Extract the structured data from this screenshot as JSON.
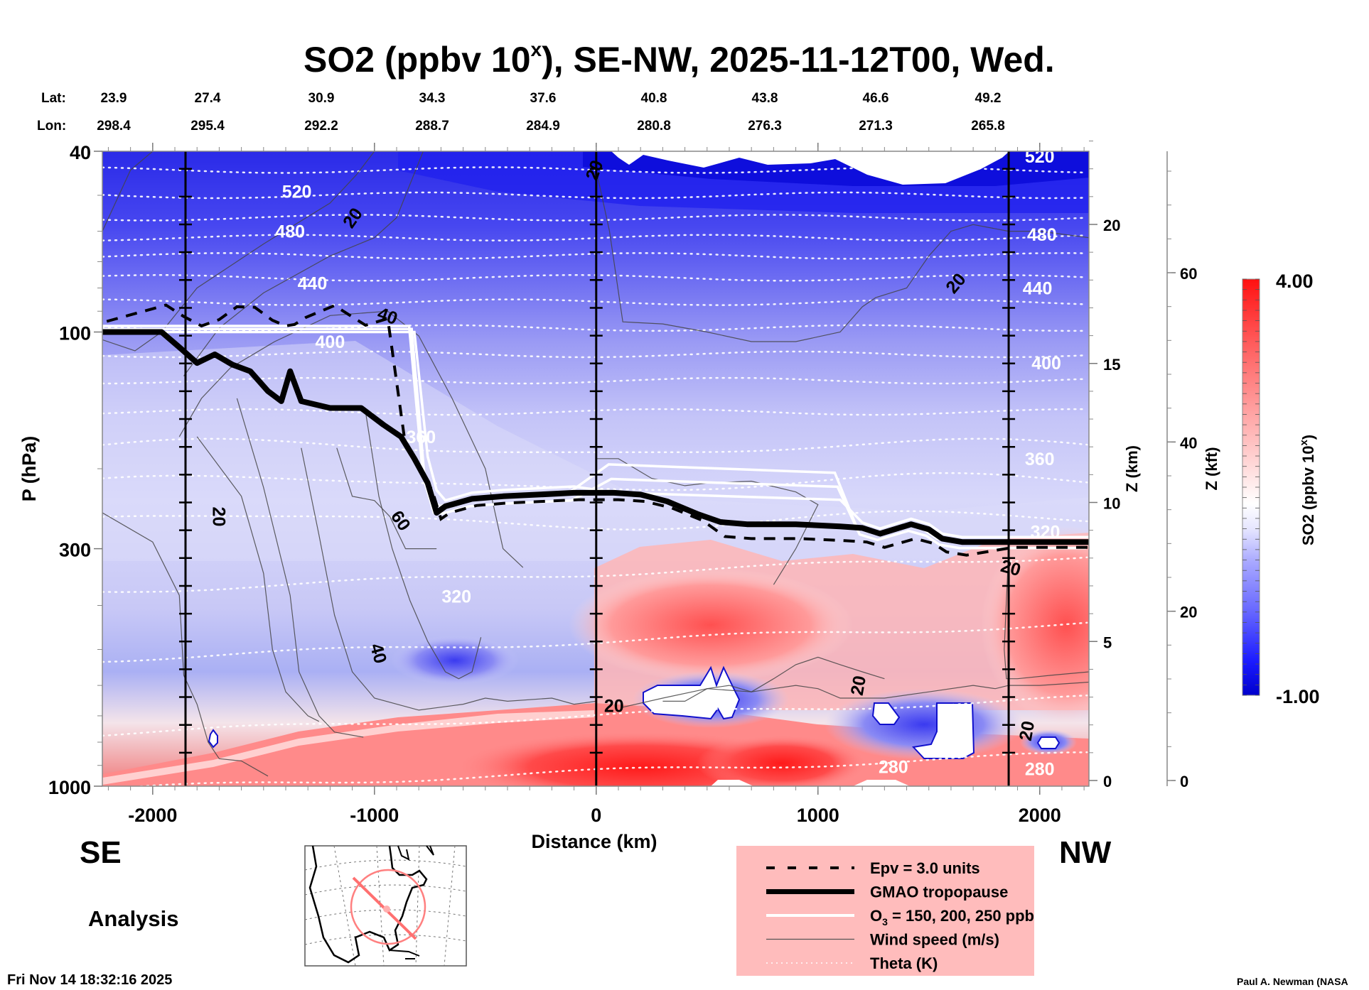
{
  "chart_data": {
    "type": "heatmap",
    "title": "SO2 (ppbv 10",
    "title_sup": "x",
    "title_rest": "), SE-NW, 2025-11-12T00, Wed.",
    "xlabel": "Distance (km)",
    "ylabel": "P (hPa)",
    "xlim": [
      -2227,
      2222
    ],
    "ylim": [
      1000,
      40
    ],
    "yscale": "log",
    "x_ticks": [
      -2000,
      -1000,
      0,
      1000,
      2000
    ],
    "x_tick_labels": [
      "-2000",
      "-1000",
      "0",
      "1000",
      "2000"
    ],
    "y_ticks": [
      40,
      100,
      300,
      1000
    ],
    "y_tick_labels": [
      "40",
      "100",
      "300",
      "1000"
    ],
    "z_km_axis": {
      "label": "Z (km)",
      "ticks": [
        0,
        5,
        10,
        15,
        20
      ],
      "tick_labels": [
        "0",
        "5",
        "10",
        "15",
        "20"
      ]
    },
    "z_kft_axis": {
      "label": "Z (kft)",
      "ticks": [
        0,
        20,
        40,
        60
      ],
      "tick_labels": [
        "0",
        "20",
        "40",
        "60"
      ]
    },
    "lat_row": {
      "label": "Lat:",
      "values": [
        "23.9",
        "27.4",
        "30.9",
        "34.3",
        "37.6",
        "40.8",
        "43.8",
        "46.6",
        "49.2"
      ]
    },
    "lon_row": {
      "label": "Lon:",
      "values": [
        "298.4",
        "295.4",
        "292.2",
        "288.7",
        "284.9",
        "280.8",
        "276.3",
        "271.3",
        "265.8"
      ]
    },
    "marker_lines_km": [
      -1852,
      0,
      1860
    ],
    "colorbar": {
      "label": "SO2 (ppbv 10",
      "label_sup": "x",
      "label_end": ")",
      "min": -1.0,
      "max": 4.0,
      "min_label": "-1.00",
      "max_label": "4.00",
      "low_color": "#0000cc",
      "mid_color": "#ffffff",
      "high_color": "#ff1010",
      "levels": 40
    },
    "theta_labels": [
      {
        "text": "520",
        "x_km": -1350,
        "p": 49
      },
      {
        "text": "480",
        "x_km": -1380,
        "p": 60
      },
      {
        "text": "440",
        "x_km": -1280,
        "p": 78
      },
      {
        "text": "400",
        "x_km": -1200,
        "p": 105
      },
      {
        "text": "360",
        "x_km": -790,
        "p": 170
      },
      {
        "text": "320",
        "x_km": -630,
        "p": 382
      },
      {
        "text": "520",
        "x_km": 2000,
        "p": 41
      },
      {
        "text": "480",
        "x_km": 2010,
        "p": 61
      },
      {
        "text": "440",
        "x_km": 1990,
        "p": 80
      },
      {
        "text": "400",
        "x_km": 2030,
        "p": 117
      },
      {
        "text": "360",
        "x_km": 2000,
        "p": 190
      },
      {
        "text": "320",
        "x_km": 2025,
        "p": 275
      },
      {
        "text": "280",
        "x_km": 1340,
        "p": 905
      },
      {
        "text": "280",
        "x_km": 2000,
        "p": 915
      }
    ],
    "wind_labels": [
      {
        "text": "20",
        "x_km": -1100,
        "p": 56,
        "rot": -55
      },
      {
        "text": "40",
        "x_km": -940,
        "p": 92,
        "rot": 20
      },
      {
        "text": "20",
        "x_km": -1700,
        "p": 255,
        "rot": 90
      },
      {
        "text": "60",
        "x_km": -880,
        "p": 260,
        "rot": 55
      },
      {
        "text": "40",
        "x_km": -980,
        "p": 510,
        "rot": 75
      },
      {
        "text": "20",
        "x_km": -10,
        "p": 44,
        "rot": -70
      },
      {
        "text": "20",
        "x_km": 1620,
        "p": 78,
        "rot": -50
      },
      {
        "text": "20",
        "x_km": 1870,
        "p": 330,
        "rot": 15
      },
      {
        "text": "20",
        "x_km": 80,
        "p": 665,
        "rot": 0
      },
      {
        "text": "20",
        "x_km": 1180,
        "p": 600,
        "rot": -80
      },
      {
        "text": "20",
        "x_km": 1940,
        "p": 755,
        "rot": -80
      }
    ],
    "legend": [
      {
        "style": "dashed",
        "label": "Epv = 3.0 units"
      },
      {
        "style": "thick",
        "label": "GMAO tropopause"
      },
      {
        "style": "white",
        "label": "O",
        "label_sub": "3",
        "label_rest": " = 150, 200, 250 ppb"
      },
      {
        "style": "thin",
        "label": "Wind speed (m/s)"
      },
      {
        "style": "dotted",
        "label": "Theta (K)"
      }
    ],
    "legend_bg": "#ffbcbc",
    "tropopause_p": [
      [
        -2227,
        100
      ],
      [
        -1960,
        100
      ],
      [
        -1880,
        108
      ],
      [
        -1800,
        117
      ],
      [
        -1720,
        112
      ],
      [
        -1640,
        118
      ],
      [
        -1560,
        122
      ],
      [
        -1480,
        135
      ],
      [
        -1420,
        142
      ],
      [
        -1380,
        122
      ],
      [
        -1330,
        142
      ],
      [
        -1200,
        147
      ],
      [
        -1060,
        147
      ],
      [
        -960,
        160
      ],
      [
        -880,
        170
      ],
      [
        -820,
        190
      ],
      [
        -760,
        215
      ],
      [
        -720,
        250
      ],
      [
        -680,
        242
      ],
      [
        -560,
        233
      ],
      [
        -420,
        230
      ],
      [
        -260,
        228
      ],
      [
        -100,
        226
      ],
      [
        80,
        226
      ],
      [
        200,
        228
      ],
      [
        320,
        236
      ],
      [
        460,
        252
      ],
      [
        560,
        262
      ],
      [
        680,
        265
      ],
      [
        900,
        265
      ],
      [
        1100,
        268
      ],
      [
        1200,
        270
      ],
      [
        1280,
        278
      ],
      [
        1420,
        265
      ],
      [
        1500,
        272
      ],
      [
        1560,
        285
      ],
      [
        1650,
        290
      ],
      [
        1860,
        290
      ],
      [
        2222,
        290
      ]
    ]
  },
  "labels": {
    "direction_left": "SE",
    "direction_right": "NW",
    "analysis": "Analysis",
    "timestamp": "Fri Nov 14 18:32:16 2025",
    "credit": "Paul A. Newman (NASA"
  }
}
